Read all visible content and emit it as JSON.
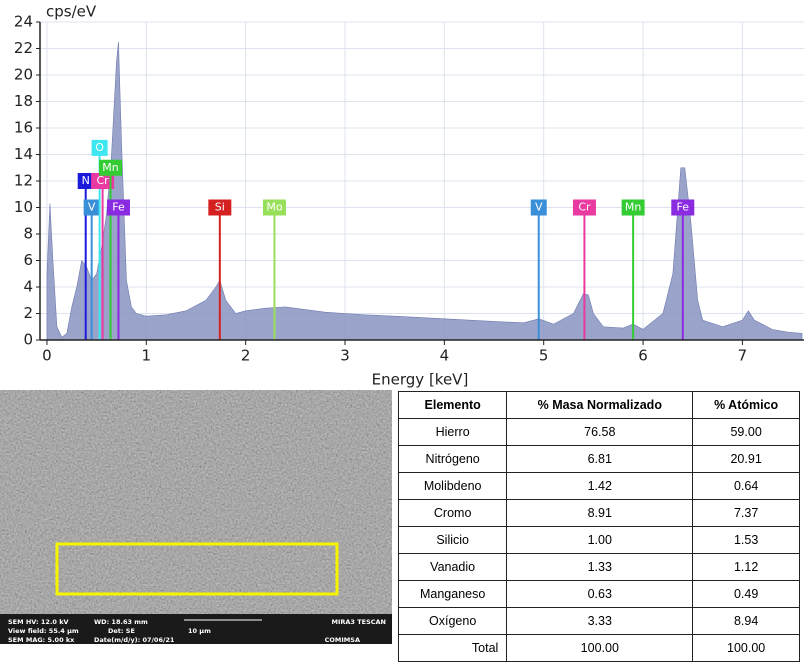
{
  "chart_data": {
    "type": "area",
    "y_label": "cps/eV",
    "x_label": "Energy [keV]",
    "x": [
      0,
      0.03,
      0.06,
      0.1,
      0.15,
      0.2,
      0.25,
      0.3,
      0.35,
      0.4,
      0.45,
      0.5,
      0.55,
      0.6,
      0.65,
      0.7,
      0.72,
      0.75,
      0.8,
      0.85,
      0.9,
      1.0,
      1.2,
      1.4,
      1.6,
      1.7,
      1.74,
      1.8,
      1.9,
      2.0,
      2.2,
      2.4,
      2.6,
      2.8,
      3.0,
      3.2,
      3.5,
      4.0,
      4.5,
      4.8,
      4.95,
      5.1,
      5.3,
      5.4,
      5.45,
      5.5,
      5.6,
      5.8,
      5.9,
      6.0,
      6.2,
      6.3,
      6.38,
      6.42,
      6.48,
      6.55,
      6.6,
      6.8,
      7.0,
      7.06,
      7.12,
      7.3,
      7.45,
      7.6
    ],
    "values": [
      5,
      10.3,
      6,
      1,
      0.2,
      0.5,
      2.5,
      4,
      6,
      5.5,
      4.5,
      5,
      7,
      9.5,
      14,
      21,
      22.5,
      15,
      4.5,
      2.5,
      2,
      1.8,
      1.9,
      2.2,
      3,
      4,
      4.5,
      3,
      2,
      2.2,
      2.4,
      2.5,
      2.3,
      2.1,
      2,
      1.9,
      1.8,
      1.6,
      1.4,
      1.3,
      1.6,
      1.2,
      2,
      3.5,
      3.4,
      2,
      1,
      0.9,
      1.2,
      0.8,
      2,
      5,
      13,
      13,
      9,
      3,
      1.5,
      1,
      1.5,
      2.2,
      1.5,
      0.8,
      0.6,
      0.5
    ],
    "color": "#8893c0",
    "xlim": [
      -0.07,
      7.62
    ],
    "ylim": [
      0,
      24
    ],
    "xticks": [
      0,
      1,
      2,
      3,
      4,
      5,
      6,
      7
    ],
    "yticks": [
      0,
      2,
      4,
      6,
      8,
      10,
      12,
      14,
      16,
      18,
      20,
      22,
      24
    ],
    "grid": true,
    "markers": [
      {
        "label": "N",
        "x": 0.39,
        "y": 12,
        "color": "#1a1adb"
      },
      {
        "label": "V",
        "x": 0.45,
        "y": 10,
        "color": "#3a8fd9"
      },
      {
        "label": "O",
        "x": 0.53,
        "y": 14.5,
        "color": "#3ee6f0"
      },
      {
        "label": "Cr",
        "x": 0.56,
        "y": 12,
        "color": "#e83aa0"
      },
      {
        "label": "Mn",
        "x": 0.64,
        "y": 13,
        "color": "#33cc33"
      },
      {
        "label": "Fe",
        "x": 0.72,
        "y": 10,
        "color": "#8a2be2"
      },
      {
        "label": "Si",
        "x": 1.74,
        "y": 10,
        "color": "#d42020"
      },
      {
        "label": "Mo",
        "x": 2.29,
        "y": 10,
        "color": "#99e05a"
      },
      {
        "label": "V",
        "x": 4.95,
        "y": 10,
        "color": "#3a8fd9"
      },
      {
        "label": "Cr",
        "x": 5.41,
        "y": 10,
        "color": "#e83aa0"
      },
      {
        "label": "Mn",
        "x": 5.9,
        "y": 10,
        "color": "#33cc33"
      },
      {
        "label": "Fe",
        "x": 6.4,
        "y": 10,
        "color": "#8a2be2"
      }
    ]
  },
  "sem_image": {
    "info": [
      "SEM HV: 12.0 kV",
      "WD: 18.63 mm",
      "MIRA3 TESCAN",
      "View field: 55.4 µm",
      "Det: SE",
      "10 µm",
      "SEM MAG: 5.00 kx",
      "Date(m/d/y): 07/06/21",
      "COMIMSA"
    ]
  },
  "table": {
    "header": [
      "Elemento",
      "% Masa Normalizado",
      "% Atómico"
    ],
    "rows": [
      [
        "Hierro",
        "76.58",
        "59.00"
      ],
      [
        "Nitrógeno",
        "6.81",
        "20.91"
      ],
      [
        "Molibdeno",
        "1.42",
        "0.64"
      ],
      [
        "Cromo",
        "8.91",
        "7.37"
      ],
      [
        "Silicio",
        "1.00",
        "1.53"
      ],
      [
        "Vanadio",
        "1.33",
        "1.12"
      ],
      [
        "Manganeso",
        "0.63",
        "0.49"
      ],
      [
        "Oxígeno",
        "3.33",
        "8.94"
      ]
    ],
    "total": [
      "Total",
      "100.00",
      "100.00"
    ]
  }
}
